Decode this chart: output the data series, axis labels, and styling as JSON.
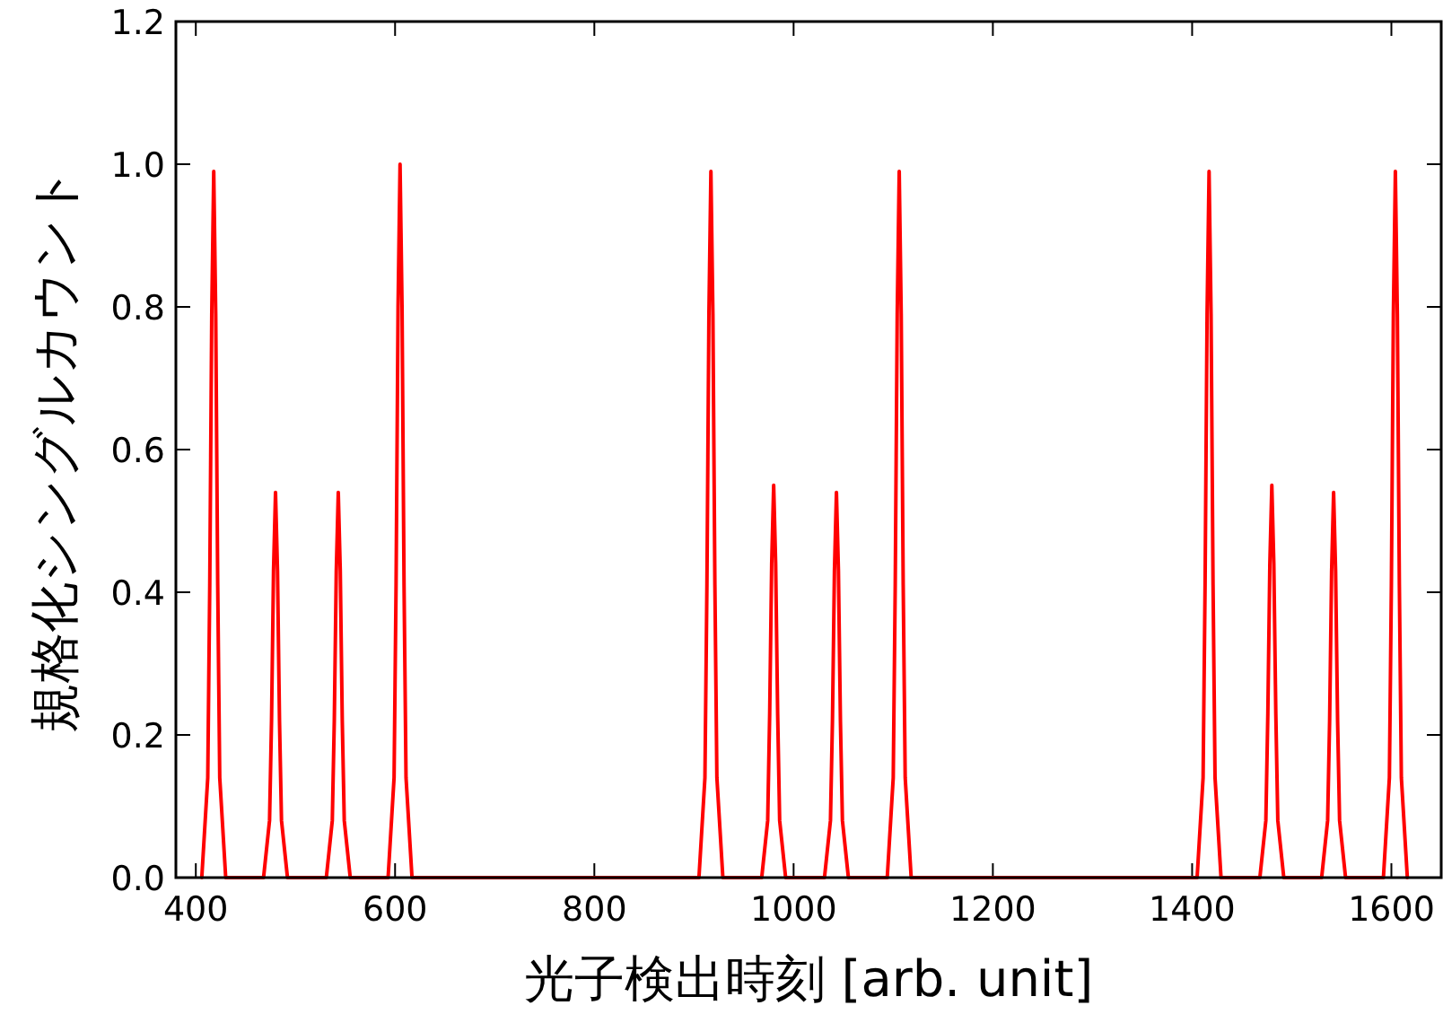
{
  "chart_data": {
    "type": "line",
    "xlabel": "光子検出時刻 [arb. unit]",
    "ylabel": "規格化シングルカウント",
    "xlim": [
      380,
      1650
    ],
    "ylim": [
      0,
      1.2
    ],
    "xticks": [
      400,
      600,
      800,
      1000,
      1200,
      1400,
      1600
    ],
    "yticks": [
      {
        "value": 0,
        "label": "0.0"
      },
      {
        "value": 0.2,
        "label": "0.2"
      },
      {
        "value": 0.4,
        "label": "0.4"
      },
      {
        "value": 0.6,
        "label": "0.6"
      },
      {
        "value": 0.8,
        "label": "0.8"
      },
      {
        "value": 1.0,
        "label": "1.0"
      },
      {
        "value": 1.2,
        "label": "1.2"
      }
    ],
    "grid": false,
    "marker": "none",
    "line_style": "solid",
    "series": [
      {
        "color": "#ff0000",
        "x": [
          406,
          412,
          414,
          416,
          418,
          420,
          422,
          424,
          430,
          468,
          474,
          476,
          478,
          480,
          482,
          484,
          486,
          492,
          531,
          537,
          539,
          541,
          543,
          545,
          547,
          549,
          555,
          593,
          599,
          601,
          603,
          605,
          607,
          609,
          611,
          617,
          905,
          911,
          913,
          915,
          917,
          919,
          921,
          923,
          929,
          968,
          974,
          976,
          978,
          980,
          982,
          984,
          986,
          992,
          1031,
          1037,
          1039,
          1041,
          1043,
          1045,
          1047,
          1049,
          1055,
          1094,
          1100,
          1102,
          1104,
          1106,
          1108,
          1110,
          1112,
          1118,
          1405,
          1411,
          1413,
          1415,
          1417,
          1419,
          1421,
          1423,
          1429,
          1468,
          1474,
          1476,
          1478,
          1480,
          1482,
          1484,
          1486,
          1492,
          1530,
          1536,
          1538,
          1540,
          1542,
          1544,
          1546,
          1548,
          1554,
          1592,
          1598,
          1600,
          1602,
          1604,
          1606,
          1608,
          1610,
          1616
        ],
        "values": [
          0,
          0.14,
          0.41,
          0.79,
          0.99,
          0.79,
          0.41,
          0.14,
          0,
          0,
          0.08,
          0.22,
          0.43,
          0.54,
          0.43,
          0.22,
          0.08,
          0,
          0,
          0.08,
          0.22,
          0.43,
          0.54,
          0.43,
          0.22,
          0.08,
          0,
          0,
          0.14,
          0.41,
          0.8,
          1.0,
          0.8,
          0.41,
          0.14,
          0,
          0,
          0.14,
          0.41,
          0.79,
          0.99,
          0.79,
          0.41,
          0.14,
          0,
          0,
          0.08,
          0.23,
          0.44,
          0.55,
          0.44,
          0.23,
          0.08,
          0,
          0,
          0.08,
          0.22,
          0.43,
          0.54,
          0.43,
          0.22,
          0.08,
          0,
          0,
          0.14,
          0.41,
          0.79,
          0.99,
          0.79,
          0.41,
          0.14,
          0,
          0,
          0.14,
          0.41,
          0.79,
          0.99,
          0.79,
          0.41,
          0.14,
          0,
          0,
          0.08,
          0.23,
          0.44,
          0.55,
          0.44,
          0.23,
          0.08,
          0,
          0,
          0.08,
          0.22,
          0.43,
          0.54,
          0.43,
          0.22,
          0.08,
          0,
          0,
          0.14,
          0.41,
          0.79,
          0.99,
          0.79,
          0.41,
          0.14,
          0
        ]
      }
    ]
  }
}
